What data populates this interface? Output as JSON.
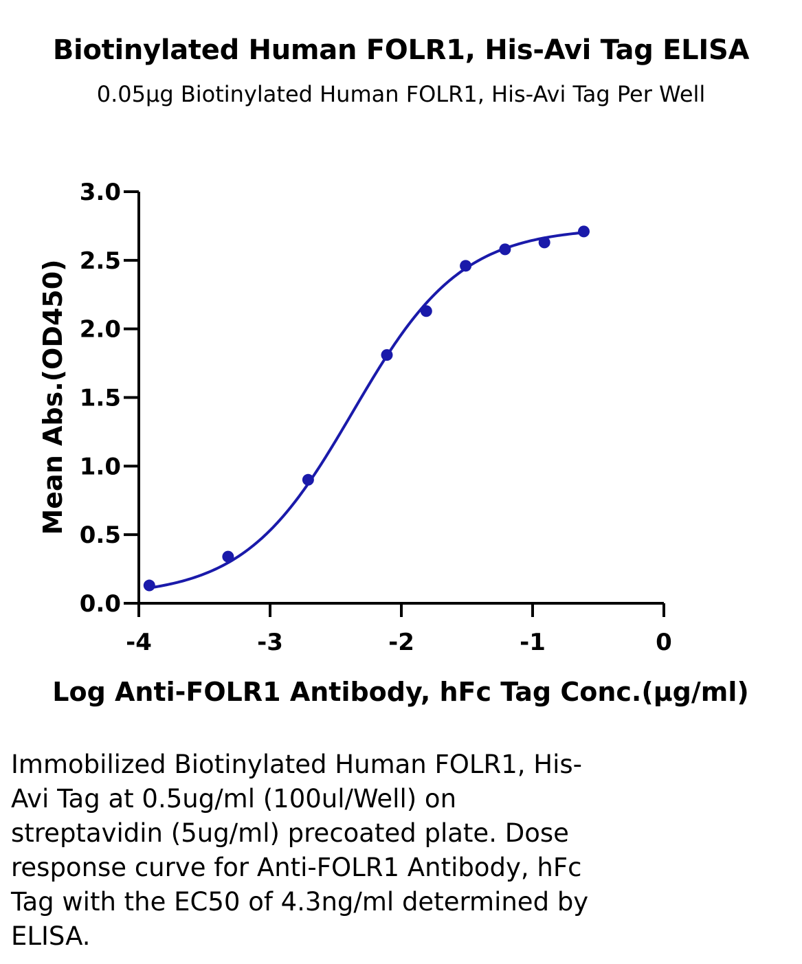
{
  "chart_data": {
    "type": "scatter",
    "title": "Biotinylated Human FOLR1, His-Avi Tag ELISA",
    "subtitle": "0.05μg Biotinylated Human FOLR1, His-Avi Tag Per Well",
    "xlabel": "Log Anti-FOLR1 Antibody, hFc Tag Conc.(μg/ml)",
    "ylabel": "Mean Abs.(OD450)",
    "xlim": [
      -4,
      0
    ],
    "ylim": [
      0,
      3.0
    ],
    "x_ticks": [
      -4,
      -3,
      -2,
      -1,
      0
    ],
    "x_tick_labels": [
      "-4",
      "-3",
      "-2",
      "-1",
      "0"
    ],
    "y_ticks": [
      0,
      0.5,
      1.0,
      1.5,
      2.0,
      2.5,
      3.0
    ],
    "y_tick_labels": [
      "0.0",
      "0.5",
      "1.0",
      "1.5",
      "2.0",
      "2.5",
      "3.0"
    ],
    "grid": false,
    "series": [
      {
        "x": [
          -3.92,
          -3.32,
          -2.71,
          -2.11,
          -1.81,
          -1.51,
          -1.21,
          -0.91,
          -0.61
        ],
        "y": [
          0.13,
          0.34,
          0.9,
          1.81,
          2.13,
          2.46,
          2.58,
          2.63,
          2.71
        ],
        "color": "#1a1aaa",
        "fit": "4PL",
        "fit_params": {
          "bottom": 0.05,
          "top": 2.74,
          "log_ec50": -2.37,
          "hill": 1.05
        }
      }
    ]
  },
  "caption": "Immobilized Biotinylated Human FOLR1, His-\nAvi Tag at 0.5ug/ml (100ul/Well) on\nstreptavidin (5ug/ml) precoated plate. Dose\nresponse curve for Anti-FOLR1 Antibody, hFc\nTag with the EC50 of 4.3ng/ml determined by\nELISA."
}
